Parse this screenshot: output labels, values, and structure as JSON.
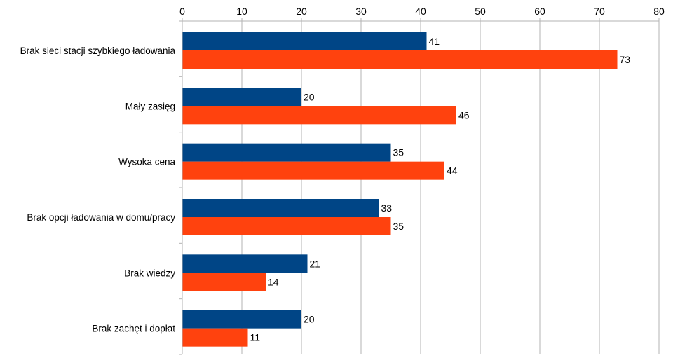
{
  "chart_data": {
    "type": "bar",
    "orientation": "horizontal",
    "categories": [
      "Brak sieci stacji szybkiego ładowania",
      "Mały zasięg",
      "Wysoka cena",
      "Brak opcji ładowania w domu/pracy",
      "Brak wiedzy",
      "Brak zachęt i dopłat"
    ],
    "series": [
      {
        "values": [
          41,
          20,
          35,
          33,
          21,
          20
        ],
        "color": "#004586"
      },
      {
        "values": [
          73,
          46,
          44,
          35,
          14,
          11
        ],
        "color": "#ff420e"
      }
    ],
    "xlim": [
      0,
      80
    ],
    "xticks": [
      "0",
      "10",
      "20",
      "30",
      "40",
      "50",
      "60",
      "70",
      "80"
    ],
    "xaxis_position": "top",
    "grid": true,
    "data_labels": true,
    "legend": "none"
  }
}
